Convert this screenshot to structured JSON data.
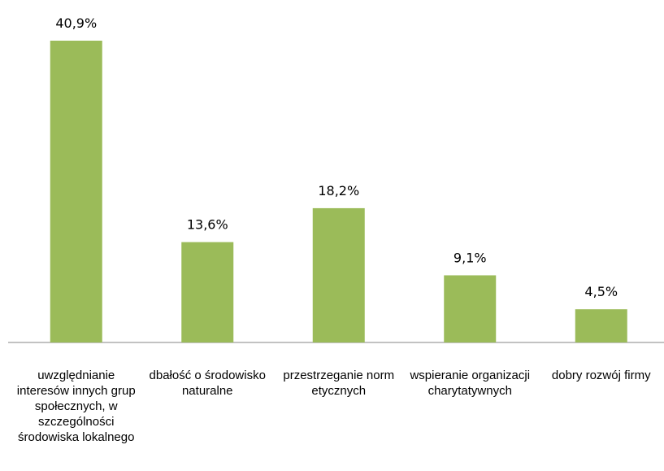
{
  "chart_data": {
    "type": "bar",
    "categories": [
      "uwzględnianie interesów innych grup społecznych, w szczególności środowiska lokalnego",
      "dbałość o środowisko naturalne",
      "przestrzeganie norm etycznych",
      "wspieranie organizacji charytatywnych",
      "dobry rozwój firmy"
    ],
    "values": [
      40.9,
      13.6,
      18.2,
      9.1,
      4.5
    ],
    "value_labels": [
      "40,9%",
      "13,6%",
      "18,2%",
      "9,1%",
      "4,5%"
    ],
    "color": "#9bbb59"
  }
}
